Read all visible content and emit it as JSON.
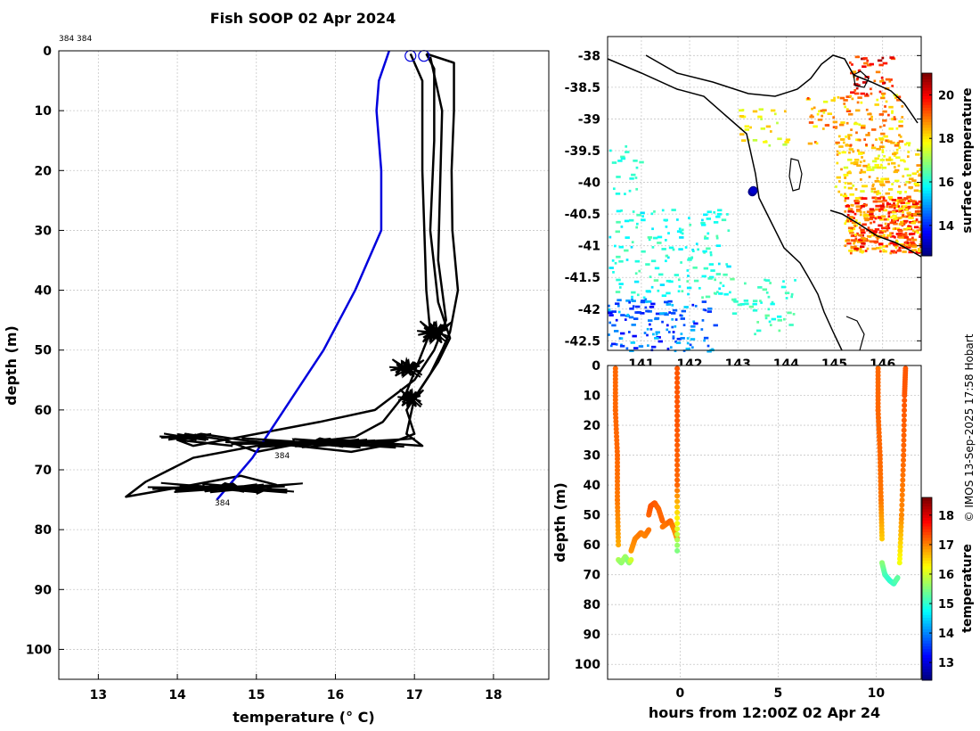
{
  "title": "Fish SOOP 02 Apr 2024",
  "credit": "© IMOS 13-Sep-2025 17:58 Hobart",
  "colors": {
    "profile": "#000000",
    "climatology": "#0000dd",
    "grid": "#c8c8c8"
  },
  "chart_data": [
    {
      "id": "profile",
      "type": "line",
      "title": "Fish SOOP 02 Apr 2024",
      "xlabel": "temperature (° C)",
      "ylabel": "depth (m)",
      "xlim": [
        12.5,
        18.7
      ],
      "ylim": [
        0,
        105
      ],
      "y_reversed": true,
      "xticks": [
        13,
        14,
        15,
        16,
        17,
        18
      ],
      "yticks": [
        0,
        10,
        20,
        30,
        40,
        50,
        60,
        70,
        80,
        90,
        100
      ],
      "grid": true,
      "corner_label": "384 384",
      "bottom_label": "384",
      "mid_label": "384",
      "series": [
        {
          "name": "climatology",
          "color": "#0000dd",
          "x": [
            16.68,
            16.55,
            16.52,
            16.58,
            16.58,
            16.58,
            16.25,
            15.85,
            15.5,
            15.25,
            14.95,
            14.5
          ],
          "y": [
            0,
            5,
            10,
            20,
            25,
            30,
            40,
            50,
            57,
            62,
            68,
            75
          ]
        },
        {
          "name": "cast-1",
          "color": "#000000",
          "x": [
            17.15,
            17.5,
            17.5,
            17.47,
            17.48,
            17.55,
            17.45,
            17.35,
            17.2,
            17.0,
            16.9,
            17.1,
            16.0,
            15.0,
            14.2,
            13.9,
            13.6,
            13.35,
            14.0,
            14.8,
            15.25,
            15.0
          ],
          "y": [
            0.5,
            2,
            10,
            20,
            30,
            40,
            47,
            50,
            54,
            58,
            64,
            66,
            65,
            66,
            68,
            70,
            72,
            74.5,
            73,
            71,
            72.5,
            74
          ]
        },
        {
          "name": "cast-2",
          "color": "#000000",
          "x": [
            17.15,
            17.25,
            17.25,
            17.2,
            17.3,
            17.45,
            17.3,
            17.1,
            16.9,
            17.0,
            16.6,
            16.2,
            15.5,
            14.8,
            14.3,
            14.0
          ],
          "y": [
            0.5,
            3,
            15,
            30,
            42,
            48,
            52,
            56,
            60,
            64,
            66,
            67,
            66,
            65,
            64,
            65
          ]
        },
        {
          "name": "cast-3",
          "color": "#000000",
          "x": [
            16.95,
            17.1,
            17.1,
            17.15,
            17.2,
            17.05,
            16.9,
            16.6,
            16.25,
            15.6,
            15.0,
            14.6,
            14.1
          ],
          "y": [
            0.5,
            5,
            20,
            40,
            47,
            52,
            57,
            62,
            64.5,
            65.5,
            67,
            65,
            64
          ]
        },
        {
          "name": "cast-4",
          "color": "#000000",
          "x": [
            17.2,
            17.35,
            17.3,
            17.4,
            17.25,
            17.0,
            16.5,
            15.8,
            15.0,
            14.6,
            14.2,
            14.0,
            14.7
          ],
          "y": [
            1,
            10,
            35,
            45,
            50,
            55,
            60,
            62,
            64,
            65,
            66,
            65,
            66
          ]
        }
      ],
      "markers": [
        {
          "x": 16.95,
          "y": 0.4
        },
        {
          "x": 17.12,
          "y": 0.4
        }
      ]
    },
    {
      "id": "map",
      "type": "heatmap",
      "colorbar_label": "surface temperature",
      "colorbar_ticks": [
        14,
        16,
        18,
        20
      ],
      "colorbar_range": [
        12.6,
        21.0
      ],
      "xlim": [
        140.3,
        146.8
      ],
      "ylim": [
        -42.65,
        -37.7
      ],
      "xticks": [
        141,
        142,
        143,
        144,
        145,
        146
      ],
      "yticks": [
        -38,
        -38.5,
        -39,
        -39.5,
        -40,
        -40.5,
        -41,
        -41.5,
        -42,
        -42.5
      ],
      "track": [
        {
          "lon": 143.3,
          "lat": -40.15
        },
        {
          "lon": 143.32,
          "lat": -40.13
        }
      ]
    },
    {
      "id": "timeseries",
      "type": "scatter",
      "xlabel": "hours from 12:00Z 02 Apr 24",
      "ylabel": "depth (m)",
      "xlim": [
        -3.7,
        12.3
      ],
      "ylim": [
        0,
        105
      ],
      "y_reversed": true,
      "xticks": [
        0,
        5,
        10
      ],
      "yticks": [
        0,
        10,
        20,
        30,
        40,
        50,
        60,
        70,
        80,
        90,
        100
      ],
      "colorbar_label": "temperature",
      "colorbar_ticks": [
        13,
        14,
        15,
        16,
        17,
        18
      ],
      "colorbar_range": [
        12.4,
        18.6
      ],
      "segments": [
        {
          "t": [
            -3.3,
            -3.3,
            -3.2,
            -3.2,
            -3.15
          ],
          "d": [
            1,
            15,
            30,
            45,
            60
          ],
          "temp": [
            17.2,
            17.2,
            17.2,
            17.1,
            16.8
          ]
        },
        {
          "t": [
            -3.15,
            -3.0,
            -2.8,
            -2.6,
            -2.5
          ],
          "d": [
            65,
            66,
            64,
            66,
            65
          ],
          "temp": [
            15.8,
            15.6,
            15.7,
            15.5,
            16.0
          ]
        },
        {
          "t": [
            -2.5,
            -2.3,
            -2.0,
            -1.8,
            -1.6
          ],
          "d": [
            62,
            58,
            56,
            57,
            55
          ],
          "temp": [
            16.9,
            17.0,
            17.1,
            17.0,
            17.1
          ]
        },
        {
          "t": [
            -1.6,
            -1.5,
            -1.3,
            -1.1,
            -0.9
          ],
          "d": [
            50,
            47,
            46,
            48,
            52
          ],
          "temp": [
            17.2,
            17.3,
            17.3,
            17.2,
            17.2
          ]
        },
        {
          "t": [
            -0.9,
            -0.7,
            -0.5,
            -0.3,
            -0.15
          ],
          "d": [
            54,
            53,
            52,
            55,
            58
          ],
          "temp": [
            17.1,
            17.1,
            17.2,
            17.0,
            16.9
          ]
        },
        {
          "t": [
            -0.15,
            -0.15,
            -0.15,
            -0.15
          ],
          "d": [
            62,
            40,
            20,
            1
          ],
          "temp": [
            15.5,
            17.2,
            17.3,
            17.3
          ]
        },
        {
          "t": [
            10.1,
            10.1,
            10.2,
            10.25,
            10.3
          ],
          "d": [
            1,
            15,
            30,
            45,
            58
          ],
          "temp": [
            17.2,
            17.2,
            17.2,
            17.1,
            16.6
          ]
        },
        {
          "t": [
            10.3,
            10.45,
            10.7,
            10.9,
            11.1
          ],
          "d": [
            66,
            70,
            72,
            73,
            71
          ],
          "temp": [
            15.6,
            15.2,
            15.0,
            15.1,
            15.3
          ]
        },
        {
          "t": [
            11.2,
            11.3,
            11.4,
            11.45,
            11.5
          ],
          "d": [
            66,
            50,
            30,
            10,
            1
          ],
          "temp": [
            16.2,
            17.0,
            17.2,
            17.3,
            17.3
          ]
        }
      ]
    }
  ]
}
